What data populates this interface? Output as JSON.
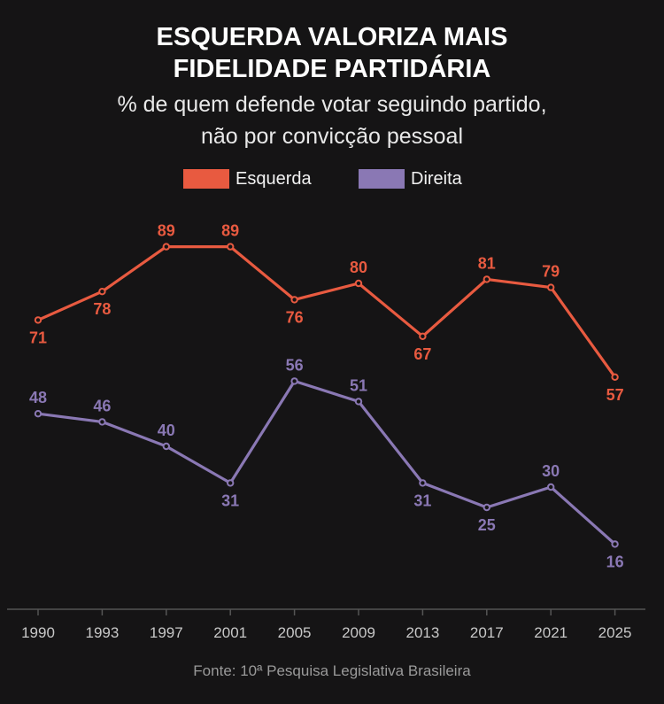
{
  "title_line1": "ESQUERDA VALORIZA MAIS",
  "title_line2": "FIDELIDADE PARTIDÁRIA",
  "subtitle_line1": "% de quem defende votar seguindo partido,",
  "subtitle_line2": "não por convicção pessoal",
  "source": "Fonte: 10ª Pesquisa Legislativa Brasileira",
  "colors": {
    "background": "#151415",
    "esquerda": "#e85a40",
    "direita": "#8a78b4",
    "axis": "#555555",
    "tick_label": "#c8c8c8"
  },
  "chart_data": {
    "type": "line",
    "categories": [
      "1990",
      "1993",
      "1997",
      "2001",
      "2005",
      "2009",
      "2013",
      "2017",
      "2021",
      "2025"
    ],
    "series": [
      {
        "name": "Esquerda",
        "color": "#e85a40",
        "values": [
          71,
          78,
          89,
          89,
          76,
          80,
          67,
          81,
          79,
          57
        ],
        "label_positions": [
          "below",
          "below",
          "above",
          "above",
          "below",
          "above",
          "below",
          "above",
          "above",
          "below"
        ]
      },
      {
        "name": "Direita",
        "color": "#8a78b4",
        "values": [
          48,
          46,
          40,
          31,
          56,
          51,
          31,
          25,
          30,
          16
        ],
        "label_positions": [
          "above",
          "above",
          "above",
          "below",
          "above",
          "above",
          "below",
          "below",
          "above",
          "below"
        ]
      }
    ],
    "ylim": [
      0,
      100
    ],
    "grid": false,
    "legend": "top-center",
    "title": "ESQUERDA VALORIZA MAIS FIDELIDADE PARTIDÁRIA",
    "subtitle": "% de quem defende votar seguindo partido, não por convicção pessoal",
    "xlabel": "",
    "ylabel": ""
  }
}
